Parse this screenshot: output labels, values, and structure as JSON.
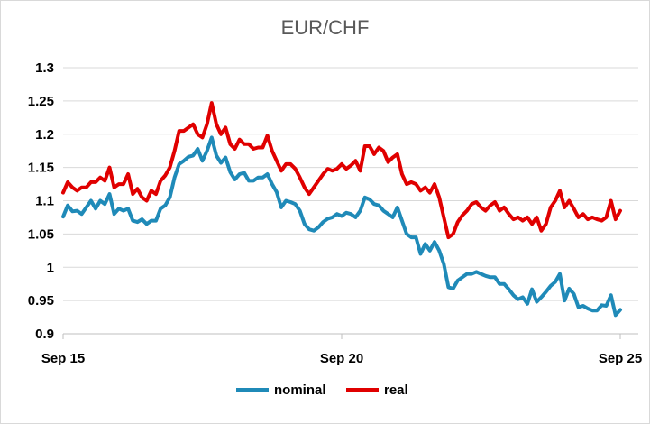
{
  "chart_data": {
    "type": "line",
    "title": "EUR/CHF",
    "xlabel": "",
    "ylabel": "",
    "ylim": [
      0.9,
      1.3
    ],
    "yticks": [
      "0.9",
      "0.95",
      "1",
      "1.05",
      "1.1",
      "1.15",
      "1.2",
      "1.25",
      "1.3"
    ],
    "ytick_values": [
      0.9,
      0.95,
      1.0,
      1.05,
      1.1,
      1.15,
      1.2,
      1.25,
      1.3
    ],
    "xticks": [
      "Sep 15",
      "Sep 20",
      "Sep 25"
    ],
    "xtick_values": [
      2015.667,
      2020.667,
      2025.667
    ],
    "xlim": [
      2015.667,
      2025.667
    ],
    "grid": "horizontal",
    "legend": "bottom",
    "colors": {
      "nominal": "#1f8ab8",
      "real": "#e00000"
    },
    "series": [
      {
        "name": "nominal",
        "color": "#1f8ab8",
        "points": [
          [
            2015.667,
            1.076
          ],
          [
            2015.75,
            1.093
          ],
          [
            2015.833,
            1.084
          ],
          [
            2015.917,
            1.085
          ],
          [
            2016.0,
            1.08
          ],
          [
            2016.083,
            1.09
          ],
          [
            2016.167,
            1.1
          ],
          [
            2016.25,
            1.088
          ],
          [
            2016.333,
            1.1
          ],
          [
            2016.417,
            1.095
          ],
          [
            2016.5,
            1.11
          ],
          [
            2016.583,
            1.08
          ],
          [
            2016.667,
            1.088
          ],
          [
            2016.75,
            1.085
          ],
          [
            2016.833,
            1.088
          ],
          [
            2016.917,
            1.07
          ],
          [
            2017.0,
            1.068
          ],
          [
            2017.083,
            1.072
          ],
          [
            2017.167,
            1.065
          ],
          [
            2017.25,
            1.07
          ],
          [
            2017.333,
            1.07
          ],
          [
            2017.417,
            1.088
          ],
          [
            2017.5,
            1.093
          ],
          [
            2017.583,
            1.105
          ],
          [
            2017.667,
            1.135
          ],
          [
            2017.75,
            1.155
          ],
          [
            2017.833,
            1.16
          ],
          [
            2017.917,
            1.166
          ],
          [
            2018.0,
            1.168
          ],
          [
            2018.083,
            1.178
          ],
          [
            2018.167,
            1.16
          ],
          [
            2018.25,
            1.175
          ],
          [
            2018.333,
            1.195
          ],
          [
            2018.417,
            1.168
          ],
          [
            2018.5,
            1.157
          ],
          [
            2018.583,
            1.165
          ],
          [
            2018.667,
            1.143
          ],
          [
            2018.75,
            1.132
          ],
          [
            2018.833,
            1.14
          ],
          [
            2018.917,
            1.142
          ],
          [
            2019.0,
            1.13
          ],
          [
            2019.083,
            1.13
          ],
          [
            2019.167,
            1.135
          ],
          [
            2019.25,
            1.135
          ],
          [
            2019.333,
            1.14
          ],
          [
            2019.417,
            1.125
          ],
          [
            2019.5,
            1.113
          ],
          [
            2019.583,
            1.09
          ],
          [
            2019.667,
            1.1
          ],
          [
            2019.75,
            1.098
          ],
          [
            2019.833,
            1.095
          ],
          [
            2019.917,
            1.085
          ],
          [
            2020.0,
            1.065
          ],
          [
            2020.083,
            1.057
          ],
          [
            2020.167,
            1.055
          ],
          [
            2020.25,
            1.06
          ],
          [
            2020.333,
            1.068
          ],
          [
            2020.417,
            1.073
          ],
          [
            2020.5,
            1.075
          ],
          [
            2020.583,
            1.08
          ],
          [
            2020.667,
            1.077
          ],
          [
            2020.75,
            1.082
          ],
          [
            2020.833,
            1.08
          ],
          [
            2020.917,
            1.075
          ],
          [
            2021.0,
            1.085
          ],
          [
            2021.083,
            1.105
          ],
          [
            2021.167,
            1.102
          ],
          [
            2021.25,
            1.095
          ],
          [
            2021.333,
            1.093
          ],
          [
            2021.417,
            1.085
          ],
          [
            2021.5,
            1.08
          ],
          [
            2021.583,
            1.075
          ],
          [
            2021.667,
            1.09
          ],
          [
            2021.75,
            1.07
          ],
          [
            2021.833,
            1.05
          ],
          [
            2021.917,
            1.045
          ],
          [
            2022.0,
            1.045
          ],
          [
            2022.083,
            1.02
          ],
          [
            2022.167,
            1.035
          ],
          [
            2022.25,
            1.025
          ],
          [
            2022.333,
            1.038
          ],
          [
            2022.417,
            1.025
          ],
          [
            2022.5,
            1.005
          ],
          [
            2022.583,
            0.97
          ],
          [
            2022.667,
            0.968
          ],
          [
            2022.75,
            0.98
          ],
          [
            2022.833,
            0.985
          ],
          [
            2022.917,
            0.99
          ],
          [
            2023.0,
            0.99
          ],
          [
            2023.083,
            0.993
          ],
          [
            2023.167,
            0.99
          ],
          [
            2023.25,
            0.987
          ],
          [
            2023.333,
            0.985
          ],
          [
            2023.417,
            0.985
          ],
          [
            2023.5,
            0.975
          ],
          [
            2023.583,
            0.975
          ],
          [
            2023.667,
            0.967
          ],
          [
            2023.75,
            0.958
          ],
          [
            2023.833,
            0.952
          ],
          [
            2023.917,
            0.955
          ],
          [
            2024.0,
            0.945
          ],
          [
            2024.083,
            0.967
          ],
          [
            2024.167,
            0.948
          ],
          [
            2024.25,
            0.955
          ],
          [
            2024.333,
            0.963
          ],
          [
            2024.417,
            0.972
          ],
          [
            2024.5,
            0.978
          ],
          [
            2024.583,
            0.99
          ],
          [
            2024.667,
            0.95
          ],
          [
            2024.75,
            0.968
          ],
          [
            2024.833,
            0.96
          ],
          [
            2024.917,
            0.94
          ],
          [
            2025.0,
            0.942
          ],
          [
            2025.083,
            0.938
          ],
          [
            2025.167,
            0.935
          ],
          [
            2025.25,
            0.935
          ],
          [
            2025.333,
            0.943
          ],
          [
            2025.417,
            0.942
          ],
          [
            2025.5,
            0.958
          ],
          [
            2025.583,
            0.928
          ],
          [
            2025.667,
            0.936
          ]
        ]
      },
      {
        "name": "real",
        "color": "#e00000",
        "points": [
          [
            2015.667,
            1.112
          ],
          [
            2015.75,
            1.128
          ],
          [
            2015.833,
            1.12
          ],
          [
            2015.917,
            1.115
          ],
          [
            2016.0,
            1.12
          ],
          [
            2016.083,
            1.12
          ],
          [
            2016.167,
            1.128
          ],
          [
            2016.25,
            1.128
          ],
          [
            2016.333,
            1.135
          ],
          [
            2016.417,
            1.13
          ],
          [
            2016.5,
            1.15
          ],
          [
            2016.583,
            1.12
          ],
          [
            2016.667,
            1.125
          ],
          [
            2016.75,
            1.125
          ],
          [
            2016.833,
            1.14
          ],
          [
            2016.917,
            1.11
          ],
          [
            2017.0,
            1.118
          ],
          [
            2017.083,
            1.105
          ],
          [
            2017.167,
            1.1
          ],
          [
            2017.25,
            1.115
          ],
          [
            2017.333,
            1.11
          ],
          [
            2017.417,
            1.13
          ],
          [
            2017.5,
            1.138
          ],
          [
            2017.583,
            1.15
          ],
          [
            2017.667,
            1.175
          ],
          [
            2017.75,
            1.205
          ],
          [
            2017.833,
            1.205
          ],
          [
            2017.917,
            1.21
          ],
          [
            2018.0,
            1.215
          ],
          [
            2018.083,
            1.2
          ],
          [
            2018.167,
            1.195
          ],
          [
            2018.25,
            1.215
          ],
          [
            2018.333,
            1.247
          ],
          [
            2018.417,
            1.215
          ],
          [
            2018.5,
            1.2
          ],
          [
            2018.583,
            1.21
          ],
          [
            2018.667,
            1.185
          ],
          [
            2018.75,
            1.178
          ],
          [
            2018.833,
            1.192
          ],
          [
            2018.917,
            1.185
          ],
          [
            2019.0,
            1.185
          ],
          [
            2019.083,
            1.178
          ],
          [
            2019.167,
            1.18
          ],
          [
            2019.25,
            1.18
          ],
          [
            2019.333,
            1.198
          ],
          [
            2019.417,
            1.175
          ],
          [
            2019.5,
            1.16
          ],
          [
            2019.583,
            1.145
          ],
          [
            2019.667,
            1.155
          ],
          [
            2019.75,
            1.155
          ],
          [
            2019.833,
            1.148
          ],
          [
            2019.917,
            1.135
          ],
          [
            2020.0,
            1.12
          ],
          [
            2020.083,
            1.11
          ],
          [
            2020.167,
            1.12
          ],
          [
            2020.25,
            1.13
          ],
          [
            2020.333,
            1.14
          ],
          [
            2020.417,
            1.148
          ],
          [
            2020.5,
            1.145
          ],
          [
            2020.583,
            1.148
          ],
          [
            2020.667,
            1.155
          ],
          [
            2020.75,
            1.148
          ],
          [
            2020.833,
            1.153
          ],
          [
            2020.917,
            1.16
          ],
          [
            2021.0,
            1.145
          ],
          [
            2021.083,
            1.182
          ],
          [
            2021.167,
            1.182
          ],
          [
            2021.25,
            1.17
          ],
          [
            2021.333,
            1.18
          ],
          [
            2021.417,
            1.175
          ],
          [
            2021.5,
            1.158
          ],
          [
            2021.583,
            1.165
          ],
          [
            2021.667,
            1.17
          ],
          [
            2021.75,
            1.14
          ],
          [
            2021.833,
            1.125
          ],
          [
            2021.917,
            1.128
          ],
          [
            2022.0,
            1.125
          ],
          [
            2022.083,
            1.115
          ],
          [
            2022.167,
            1.12
          ],
          [
            2022.25,
            1.112
          ],
          [
            2022.333,
            1.125
          ],
          [
            2022.417,
            1.105
          ],
          [
            2022.5,
            1.075
          ],
          [
            2022.583,
            1.045
          ],
          [
            2022.667,
            1.05
          ],
          [
            2022.75,
            1.068
          ],
          [
            2022.833,
            1.078
          ],
          [
            2022.917,
            1.085
          ],
          [
            2023.0,
            1.095
          ],
          [
            2023.083,
            1.098
          ],
          [
            2023.167,
            1.09
          ],
          [
            2023.25,
            1.085
          ],
          [
            2023.333,
            1.093
          ],
          [
            2023.417,
            1.098
          ],
          [
            2023.5,
            1.085
          ],
          [
            2023.583,
            1.09
          ],
          [
            2023.667,
            1.08
          ],
          [
            2023.75,
            1.072
          ],
          [
            2023.833,
            1.075
          ],
          [
            2023.917,
            1.07
          ],
          [
            2024.0,
            1.075
          ],
          [
            2024.083,
            1.065
          ],
          [
            2024.167,
            1.075
          ],
          [
            2024.25,
            1.055
          ],
          [
            2024.333,
            1.065
          ],
          [
            2024.417,
            1.09
          ],
          [
            2024.5,
            1.1
          ],
          [
            2024.583,
            1.115
          ],
          [
            2024.667,
            1.09
          ],
          [
            2024.75,
            1.1
          ],
          [
            2024.833,
            1.088
          ],
          [
            2024.917,
            1.075
          ],
          [
            2025.0,
            1.08
          ],
          [
            2025.083,
            1.072
          ],
          [
            2025.167,
            1.075
          ],
          [
            2025.25,
            1.072
          ],
          [
            2025.333,
            1.07
          ],
          [
            2025.417,
            1.075
          ],
          [
            2025.5,
            1.1
          ],
          [
            2025.583,
            1.072
          ],
          [
            2025.667,
            1.085
          ]
        ]
      }
    ]
  }
}
